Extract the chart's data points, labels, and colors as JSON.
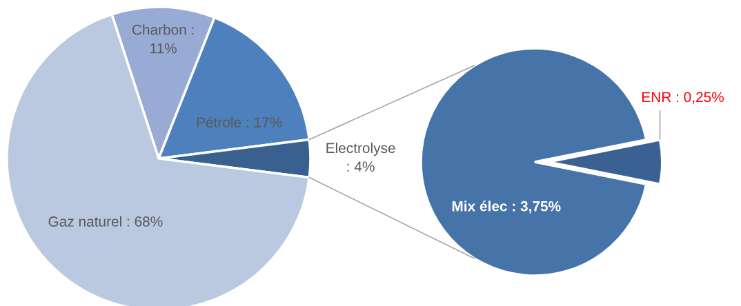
{
  "chart_data": [
    {
      "type": "pie",
      "categories": [
        "Charbon :\n11%",
        "Pétrole : 17%",
        "Electrolyse\n: 4%",
        "Gaz naturel : 68%"
      ],
      "values": [
        11,
        17,
        4,
        68
      ],
      "colors": [
        "#97abd4",
        "#4e80bd",
        "#3a6090",
        "#bac8e0"
      ]
    },
    {
      "type": "pie",
      "categories": [
        "Mix élec : 3,75%",
        "ENR : 0,25%"
      ],
      "values": [
        3.75,
        0.25
      ],
      "colors": [
        "#4674a8",
        "#3b6192"
      ]
    }
  ]
}
